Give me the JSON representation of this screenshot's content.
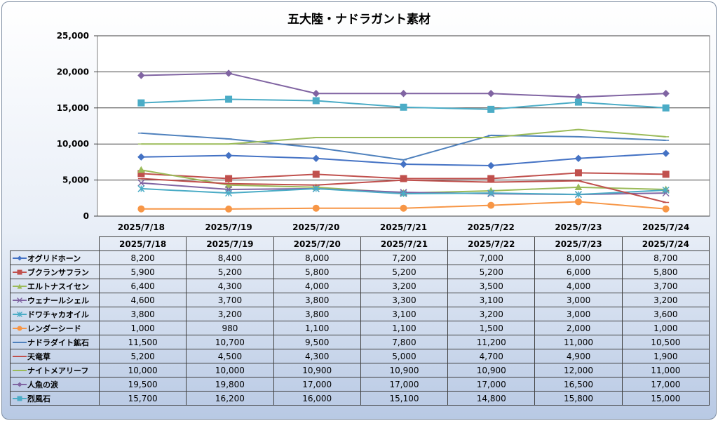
{
  "chart_data": {
    "type": "line",
    "title": "五大陸・ナドラガント素材",
    "xlabel": "",
    "ylabel": "",
    "ylim": [
      0,
      25000
    ],
    "yticks": [
      0,
      5000,
      10000,
      15000,
      20000,
      25000
    ],
    "ytick_labels": [
      "0",
      "5,000",
      "10,000",
      "15,000",
      "20,000",
      "25,000"
    ],
    "grid": true,
    "legend": "data-table",
    "categories": [
      "2025/7/18",
      "2025/7/19",
      "2025/7/20",
      "2025/7/21",
      "2025/7/22",
      "2025/7/23",
      "2025/7/24"
    ],
    "series": [
      {
        "name": "オグリドホーン",
        "color": "#4472c4",
        "marker": "diamond",
        "values": [
          8200,
          8400,
          8000,
          7200,
          7000,
          8000,
          8700
        ],
        "labels": [
          "8,200",
          "8,400",
          "8,000",
          "7,200",
          "7,000",
          "8,000",
          "8,700"
        ]
      },
      {
        "name": "ブクランサフラン",
        "color": "#c0504d",
        "marker": "square",
        "values": [
          5900,
          5200,
          5800,
          5200,
          5200,
          6000,
          5800
        ],
        "labels": [
          "5,900",
          "5,200",
          "5,800",
          "5,200",
          "5,200",
          "6,000",
          "5,800"
        ]
      },
      {
        "name": "エルトナスイセン",
        "color": "#9bbb59",
        "marker": "triangle",
        "values": [
          6400,
          4300,
          4000,
          3200,
          3500,
          4000,
          3700
        ],
        "labels": [
          "6,400",
          "4,300",
          "4,000",
          "3,200",
          "3,500",
          "4,000",
          "3,700"
        ]
      },
      {
        "name": "ウェナールシェル",
        "color": "#8064a2",
        "marker": "x",
        "values": [
          4600,
          3700,
          3800,
          3300,
          3100,
          3000,
          3200
        ],
        "labels": [
          "4,600",
          "3,700",
          "3,800",
          "3,300",
          "3,100",
          "3,000",
          "3,200"
        ]
      },
      {
        "name": "ドワチャカオイル",
        "color": "#4bacc6",
        "marker": "star",
        "values": [
          3800,
          3200,
          3800,
          3100,
          3200,
          3000,
          3600
        ],
        "labels": [
          "3,800",
          "3,200",
          "3,800",
          "3,100",
          "3,200",
          "3,000",
          "3,600"
        ]
      },
      {
        "name": "レンダーシード",
        "color": "#f79646",
        "marker": "circle",
        "values": [
          1000,
          980,
          1100,
          1100,
          1500,
          2000,
          1000
        ],
        "labels": [
          "1,000",
          "980",
          "1,100",
          "1,100",
          "1,500",
          "2,000",
          "1,000"
        ]
      },
      {
        "name": "ナドラダイト鉱石",
        "color": "#4f81bd",
        "marker": "plus",
        "values": [
          11500,
          10700,
          9500,
          7800,
          11200,
          11000,
          10500
        ],
        "labels": [
          "11,500",
          "10,700",
          "9,500",
          "7,800",
          "11,200",
          "11,000",
          "10,500"
        ]
      },
      {
        "name": "天竜草",
        "color": "#c0504d",
        "marker": "dash",
        "values": [
          5200,
          4500,
          4300,
          5000,
          4700,
          4900,
          1900
        ],
        "labels": [
          "5,200",
          "4,500",
          "4,300",
          "5,000",
          "4,700",
          "4,900",
          "1,900"
        ]
      },
      {
        "name": "ナイトメアリーフ",
        "color": "#9bbb59",
        "marker": "dash",
        "values": [
          10000,
          10000,
          10900,
          10900,
          10900,
          12000,
          11000
        ],
        "labels": [
          "10,000",
          "10,000",
          "10,900",
          "10,900",
          "10,900",
          "12,000",
          "11,000"
        ]
      },
      {
        "name": "人魚の涙",
        "color": "#8064a2",
        "marker": "diamond",
        "values": [
          19500,
          19800,
          17000,
          17000,
          17000,
          16500,
          17000
        ],
        "labels": [
          "19,500",
          "19,800",
          "17,000",
          "17,000",
          "17,000",
          "16,500",
          "17,000"
        ]
      },
      {
        "name": "烈風石",
        "color": "#4bacc6",
        "marker": "square",
        "values": [
          15700,
          16200,
          16000,
          15100,
          14800,
          15800,
          15000
        ],
        "labels": [
          "15,700",
          "16,200",
          "16,000",
          "15,100",
          "14,800",
          "15,800",
          "15,000"
        ]
      }
    ]
  }
}
